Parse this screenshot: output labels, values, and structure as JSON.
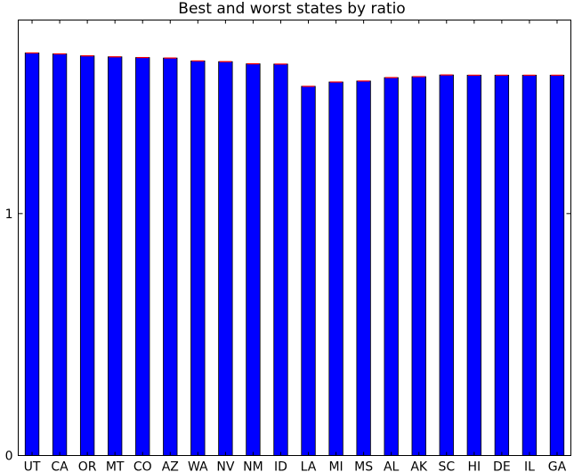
{
  "chart_data": {
    "type": "bar",
    "title": "Best and worst states by ratio",
    "xlabel": "",
    "ylabel": "",
    "categories": [
      "UT",
      "CA",
      "OR",
      "MT",
      "CO",
      "AZ",
      "WA",
      "NV",
      "NM",
      "ID",
      "LA",
      "MI",
      "MS",
      "AL",
      "AK",
      "SC",
      "HI",
      "DE",
      "IL",
      "GA"
    ],
    "values": [
      1.664,
      1.66,
      1.652,
      1.648,
      1.645,
      1.643,
      1.631,
      1.628,
      1.619,
      1.618,
      1.526,
      1.544,
      1.548,
      1.562,
      1.566,
      1.573,
      1.572,
      1.572,
      1.572,
      1.572
    ],
    "ylim": [
      0,
      1.8
    ],
    "yticks": [
      0,
      1
    ],
    "ytick_labels": [
      "0",
      "1"
    ],
    "colors": {
      "bar": "#0000ff",
      "bar_edge": "#000000",
      "cap": "#ff0000"
    },
    "grid": false,
    "legend": "none"
  }
}
